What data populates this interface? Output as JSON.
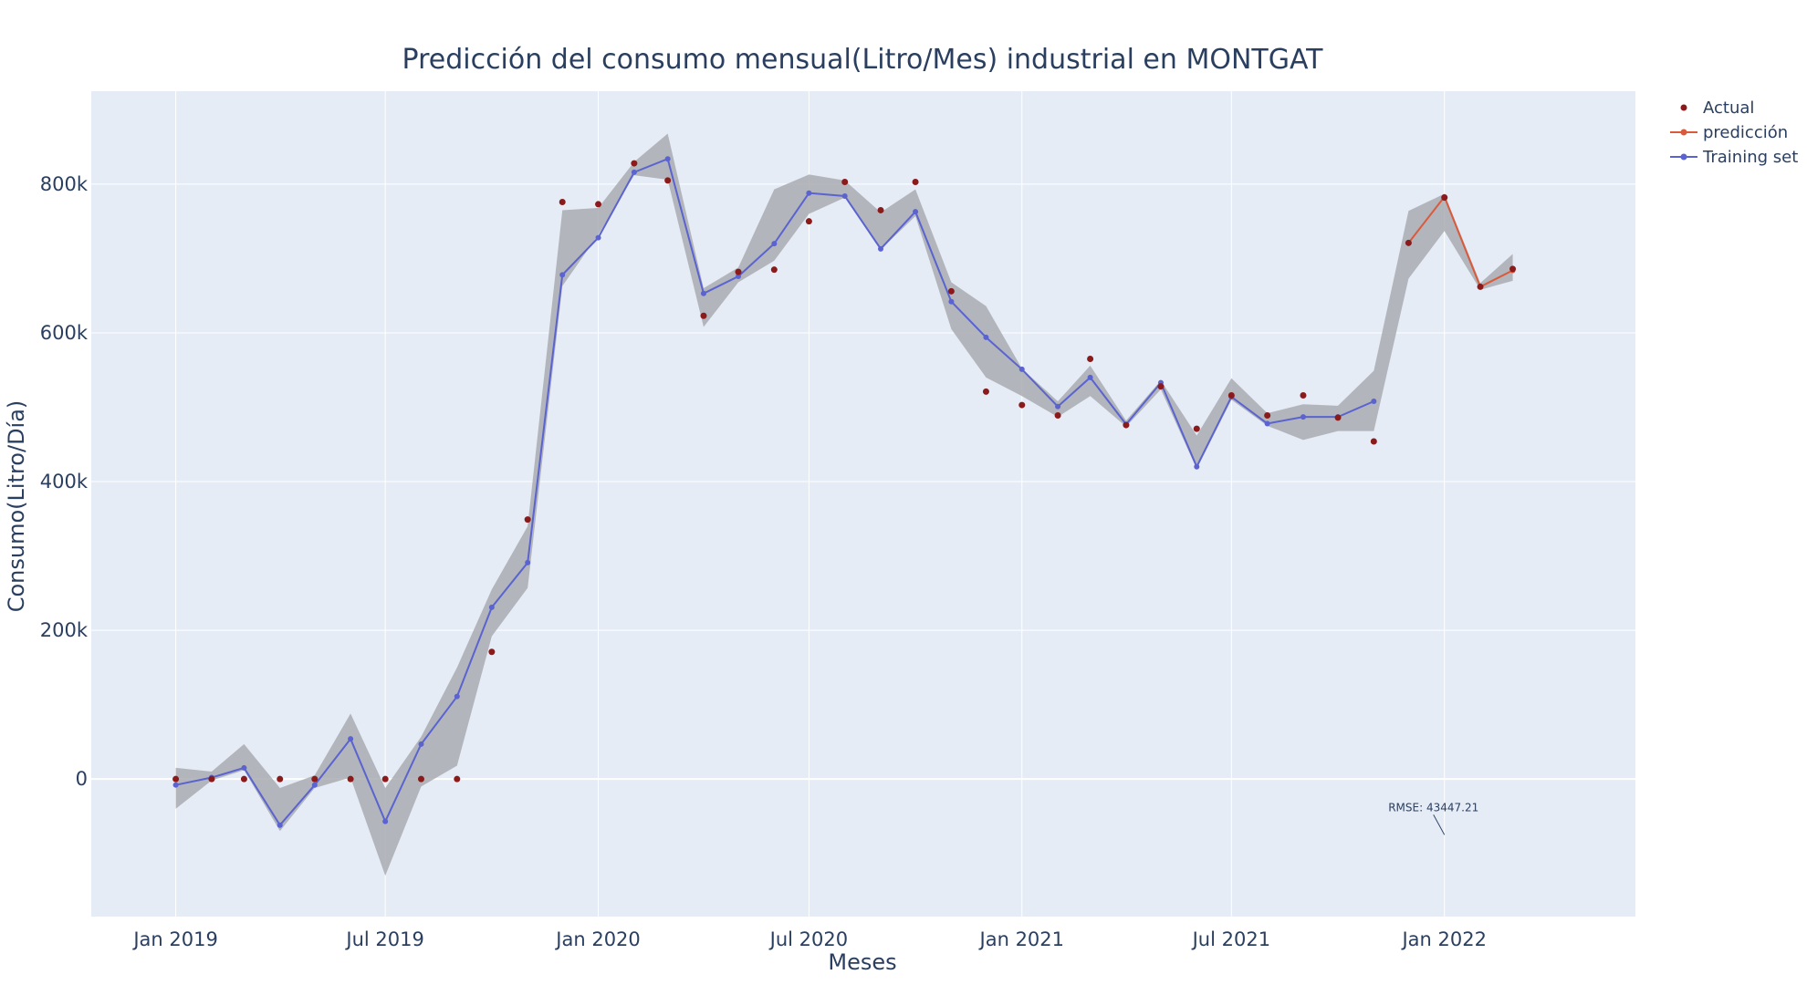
{
  "chart_data": {
    "type": "line",
    "title": "Predicción del consumo mensual(Litro/Mes) industrial en MONTGAT",
    "xlabel": "Meses",
    "ylabel": "Consumo(Litro/Día)",
    "x_ticks": [
      "Jan 2019",
      "Jul 2019",
      "Jan 2020",
      "Jul 2020",
      "Jan 2021",
      "Jul 2021",
      "Jan 2022"
    ],
    "y_ticks": [
      {
        "v": 0,
        "label": "0"
      },
      {
        "v": 200000,
        "label": "200k"
      },
      {
        "v": 400000,
        "label": "400k"
      },
      {
        "v": 600000,
        "label": "600k"
      },
      {
        "v": 800000,
        "label": "800k"
      }
    ],
    "xlim": [
      "2018-10-20",
      "2022-06-15"
    ],
    "ylim": [
      -185000,
      925000
    ],
    "grid": true,
    "legend_position": "top-right",
    "colors": {
      "plot_bg": "#e5ecf6",
      "actual": "#8b1a1a",
      "prediccion": "#d95b3c",
      "training": "#5a63cf",
      "band": "#a9abb0"
    },
    "series": [
      {
        "name": "Actual",
        "mode": "markers",
        "points": [
          [
            "2019-01-01",
            0
          ],
          [
            "2019-02-01",
            0
          ],
          [
            "2019-03-01",
            0
          ],
          [
            "2019-04-01",
            0
          ],
          [
            "2019-05-01",
            0
          ],
          [
            "2019-06-01",
            0
          ],
          [
            "2019-07-01",
            0
          ],
          [
            "2019-08-01",
            0
          ],
          [
            "2019-09-01",
            0
          ],
          [
            "2019-10-01",
            171000
          ],
          [
            "2019-11-01",
            349000
          ],
          [
            "2019-12-01",
            776000
          ],
          [
            "2020-01-01",
            773000
          ],
          [
            "2020-02-01",
            828000
          ],
          [
            "2020-03-01",
            805000
          ],
          [
            "2020-04-01",
            623000
          ],
          [
            "2020-05-01",
            682000
          ],
          [
            "2020-06-01",
            685000
          ],
          [
            "2020-07-01",
            750000
          ],
          [
            "2020-08-01",
            803000
          ],
          [
            "2020-09-01",
            765000
          ],
          [
            "2020-10-01",
            803000
          ],
          [
            "2020-11-01",
            656000
          ],
          [
            "2020-12-01",
            521000
          ],
          [
            "2021-01-01",
            503000
          ],
          [
            "2021-02-01",
            489000
          ],
          [
            "2021-03-01",
            565000
          ],
          [
            "2021-04-01",
            476000
          ],
          [
            "2021-05-01",
            528000
          ],
          [
            "2021-06-01",
            471000
          ],
          [
            "2021-07-01",
            516000
          ],
          [
            "2021-08-01",
            489000
          ],
          [
            "2021-09-01",
            516000
          ],
          [
            "2021-10-01",
            486000
          ],
          [
            "2021-11-01",
            454000
          ],
          [
            "2021-12-01",
            721000
          ],
          [
            "2022-01-01",
            782000
          ],
          [
            "2022-02-01",
            662000
          ],
          [
            "2022-03-01",
            686000
          ]
        ]
      },
      {
        "name": "predicción",
        "mode": "lines+markers",
        "points": [
          [
            "2021-12-01",
            721000
          ],
          [
            "2022-01-01",
            783000
          ],
          [
            "2022-02-01",
            662000
          ],
          [
            "2022-03-01",
            684000
          ]
        ]
      },
      {
        "name": "Training set",
        "mode": "lines+markers",
        "points": [
          [
            "2019-01-01",
            -8000
          ],
          [
            "2019-02-01",
            2000
          ],
          [
            "2019-03-01",
            15000
          ],
          [
            "2019-04-01",
            -62000
          ],
          [
            "2019-05-01",
            -8000
          ],
          [
            "2019-06-01",
            54000
          ],
          [
            "2019-07-01",
            -57000
          ],
          [
            "2019-08-01",
            47000
          ],
          [
            "2019-09-01",
            111000
          ],
          [
            "2019-10-01",
            231000
          ],
          [
            "2019-11-01",
            291000
          ],
          [
            "2019-12-01",
            678000
          ],
          [
            "2020-01-01",
            728000
          ],
          [
            "2020-02-01",
            816000
          ],
          [
            "2020-03-01",
            834000
          ],
          [
            "2020-04-01",
            653000
          ],
          [
            "2020-05-01",
            676000
          ],
          [
            "2020-06-01",
            720000
          ],
          [
            "2020-07-01",
            788000
          ],
          [
            "2020-08-01",
            784000
          ],
          [
            "2020-09-01",
            713000
          ],
          [
            "2020-10-01",
            763000
          ],
          [
            "2020-11-01",
            642000
          ],
          [
            "2020-12-01",
            594000
          ],
          [
            "2021-01-01",
            551000
          ],
          [
            "2021-02-01",
            501000
          ],
          [
            "2021-03-01",
            540000
          ],
          [
            "2021-04-01",
            477000
          ],
          [
            "2021-05-01",
            533000
          ],
          [
            "2021-06-01",
            420000
          ],
          [
            "2021-07-01",
            514000
          ],
          [
            "2021-08-01",
            478000
          ],
          [
            "2021-09-01",
            487000
          ],
          [
            "2021-10-01",
            487000
          ],
          [
            "2021-11-01",
            508000
          ]
        ]
      }
    ],
    "band": {
      "upper": [
        [
          "2019-01-01",
          15000
        ],
        [
          "2019-02-01",
          10000
        ],
        [
          "2019-03-01",
          47000
        ],
        [
          "2019-04-01",
          -12000
        ],
        [
          "2019-05-01",
          5000
        ],
        [
          "2019-06-01",
          88000
        ],
        [
          "2019-07-01",
          -12000
        ],
        [
          "2019-08-01",
          57000
        ],
        [
          "2019-09-01",
          150000
        ],
        [
          "2019-10-01",
          255000
        ],
        [
          "2019-11-01",
          340000
        ],
        [
          "2019-12-01",
          765000
        ],
        [
          "2020-01-01",
          768000
        ],
        [
          "2020-02-01",
          830000
        ],
        [
          "2020-03-01",
          868000
        ],
        [
          "2020-04-01",
          660000
        ],
        [
          "2020-05-01",
          688000
        ],
        [
          "2020-06-01",
          793000
        ],
        [
          "2020-07-01",
          813000
        ],
        [
          "2020-08-01",
          805000
        ],
        [
          "2020-09-01",
          762000
        ],
        [
          "2020-10-01",
          793000
        ],
        [
          "2020-11-01",
          668000
        ],
        [
          "2020-12-01",
          636000
        ],
        [
          "2021-01-01",
          552000
        ],
        [
          "2021-02-01",
          508000
        ],
        [
          "2021-03-01",
          556000
        ],
        [
          "2021-04-01",
          482000
        ],
        [
          "2021-05-01",
          536000
        ],
        [
          "2021-06-01",
          462000
        ],
        [
          "2021-07-01",
          539000
        ],
        [
          "2021-08-01",
          492000
        ],
        [
          "2021-09-01",
          504000
        ],
        [
          "2021-10-01",
          502000
        ],
        [
          "2021-11-01",
          549000
        ],
        [
          "2021-12-01",
          764000
        ],
        [
          "2022-01-01",
          787000
        ],
        [
          "2022-02-01",
          667000
        ],
        [
          "2022-03-01",
          706000
        ]
      ],
      "lower": [
        [
          "2019-01-01",
          -40000
        ],
        [
          "2019-02-01",
          -2000
        ],
        [
          "2019-03-01",
          12000
        ],
        [
          "2019-04-01",
          -70000
        ],
        [
          "2019-05-01",
          -12000
        ],
        [
          "2019-06-01",
          2000
        ],
        [
          "2019-07-01",
          -130000
        ],
        [
          "2019-08-01",
          -10000
        ],
        [
          "2019-09-01",
          18000
        ],
        [
          "2019-10-01",
          192000
        ],
        [
          "2019-11-01",
          257000
        ],
        [
          "2019-12-01",
          663000
        ],
        [
          "2020-01-01",
          732000
        ],
        [
          "2020-02-01",
          812000
        ],
        [
          "2020-03-01",
          806000
        ],
        [
          "2020-04-01",
          608000
        ],
        [
          "2020-05-01",
          668000
        ],
        [
          "2020-06-01",
          697000
        ],
        [
          "2020-07-01",
          760000
        ],
        [
          "2020-08-01",
          782000
        ],
        [
          "2020-09-01",
          712000
        ],
        [
          "2020-10-01",
          757000
        ],
        [
          "2020-11-01",
          605000
        ],
        [
          "2020-12-01",
          540000
        ],
        [
          "2021-01-01",
          515000
        ],
        [
          "2021-02-01",
          487000
        ],
        [
          "2021-03-01",
          515000
        ],
        [
          "2021-04-01",
          474000
        ],
        [
          "2021-05-01",
          524000
        ],
        [
          "2021-06-01",
          417000
        ],
        [
          "2021-07-01",
          510000
        ],
        [
          "2021-08-01",
          475000
        ],
        [
          "2021-09-01",
          456000
        ],
        [
          "2021-10-01",
          468000
        ],
        [
          "2021-11-01",
          468000
        ],
        [
          "2021-12-01",
          673000
        ],
        [
          "2022-01-01",
          737000
        ],
        [
          "2022-02-01",
          658000
        ],
        [
          "2022-03-01",
          670000
        ]
      ]
    },
    "annotation": {
      "text": "RMSE: 43447.21",
      "x": "2022-01-01",
      "y": -75000
    }
  }
}
